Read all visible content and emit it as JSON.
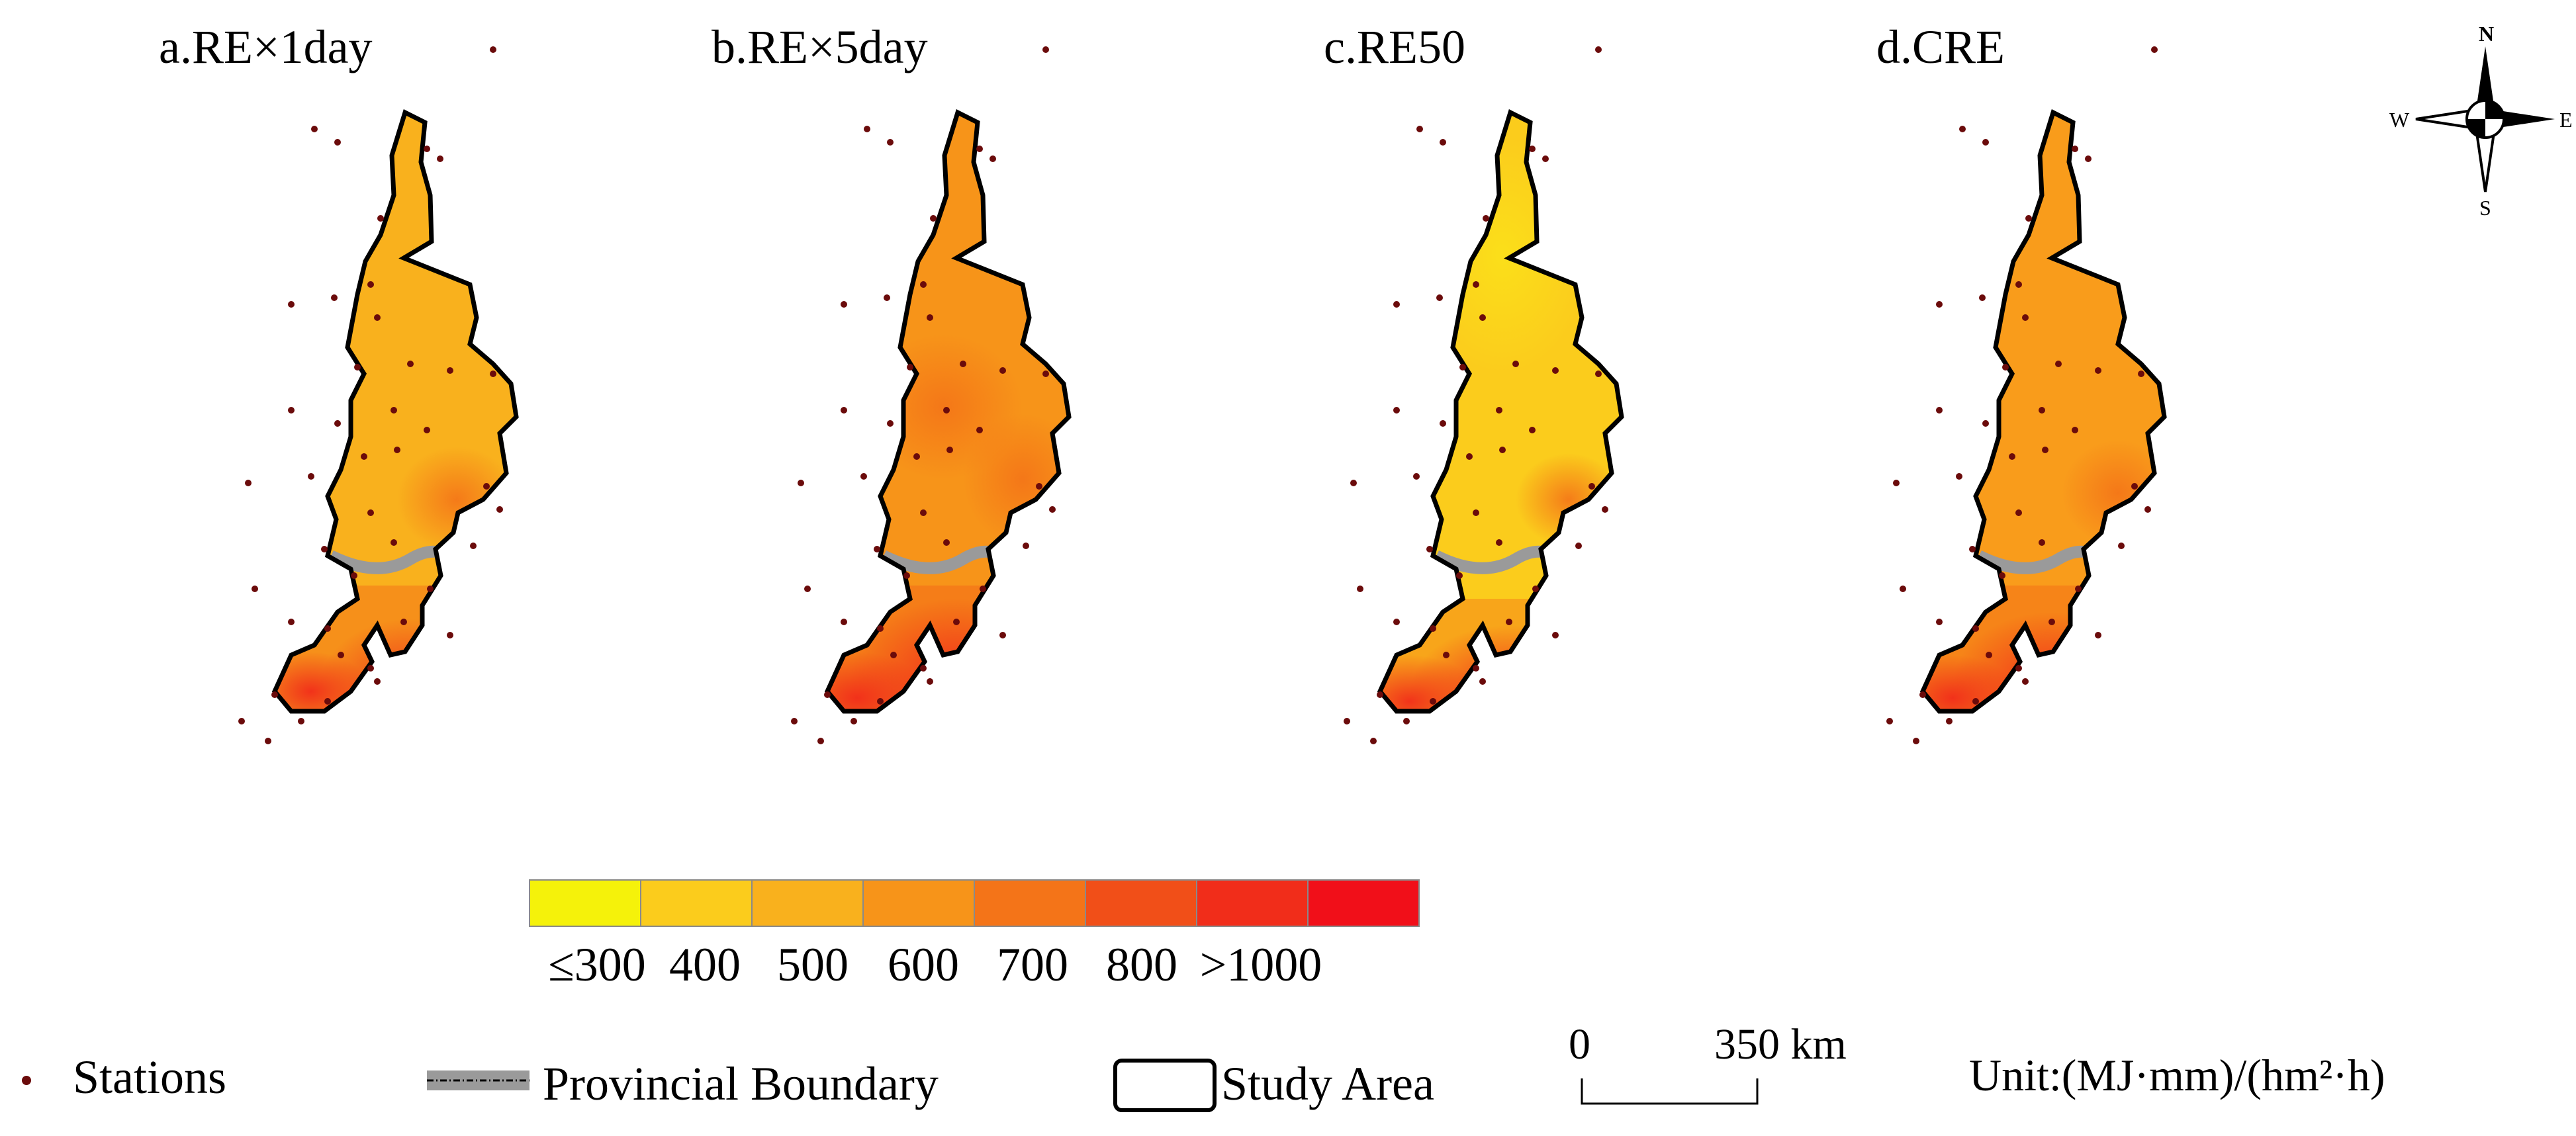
{
  "panels": [
    {
      "id": "a",
      "title": "a.RE×1day"
    },
    {
      "id": "b",
      "title": "b.RE×5day"
    },
    {
      "id": "c",
      "title": "c.RE50"
    },
    {
      "id": "d",
      "title": "d.CRE"
    }
  ],
  "compass": {
    "north": "N",
    "south": "S",
    "east": "E",
    "west": "W"
  },
  "colorbar": {
    "colors": [
      "#f5f20a",
      "#fbcc1c",
      "#f9b11d",
      "#f79419",
      "#f47418",
      "#f14f18",
      "#f12d1a",
      "#f10f19"
    ],
    "tick_labels": [
      "≤300",
      "400",
      "500",
      "600",
      "700",
      "800",
      ">1000"
    ]
  },
  "legend": {
    "stations": "Stations",
    "provincial_boundary": "Provincial Boundary",
    "study_area": "Study Area",
    "scale_zero": "0",
    "scale_end": "350 km",
    "unit": "Unit:(MJ·mm)/(hm²·h)"
  },
  "station_color": "#6b0b0b"
}
